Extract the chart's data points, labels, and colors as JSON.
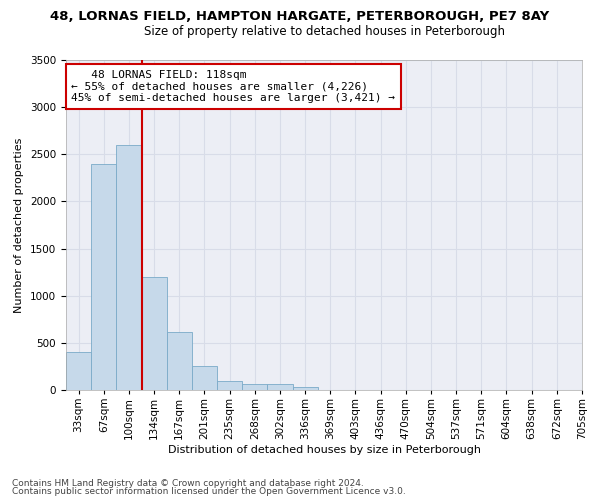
{
  "title1": "48, LORNAS FIELD, HAMPTON HARGATE, PETERBOROUGH, PE7 8AY",
  "title2": "Size of property relative to detached houses in Peterborough",
  "xlabel": "Distribution of detached houses by size in Peterborough",
  "ylabel": "Number of detached properties",
  "bar_values": [
    400,
    2400,
    2600,
    1200,
    620,
    250,
    100,
    60,
    60,
    30,
    5,
    5,
    3,
    2,
    1,
    0,
    0,
    0,
    0,
    0
  ],
  "x_labels": [
    "33sqm",
    "67sqm",
    "100sqm",
    "134sqm",
    "167sqm",
    "201sqm",
    "235sqm",
    "268sqm",
    "302sqm",
    "336sqm",
    "369sqm",
    "403sqm",
    "436sqm",
    "470sqm",
    "504sqm",
    "537sqm",
    "571sqm",
    "604sqm",
    "638sqm",
    "672sqm",
    "705sqm"
  ],
  "bar_color": "#c6d9ea",
  "bar_edge_color": "#7aaac8",
  "red_line_x": 2.5,
  "annotation_line1": "   48 LORNAS FIELD: 118sqm",
  "annotation_line2": "← 55% of detached houses are smaller (4,226)",
  "annotation_line3": "45% of semi-detached houses are larger (3,421) →",
  "annotation_box_color": "#ffffff",
  "annotation_box_edge_color": "#cc0000",
  "ylim": [
    0,
    3500
  ],
  "yticks": [
    0,
    500,
    1000,
    1500,
    2000,
    2500,
    3000,
    3500
  ],
  "grid_color": "#d8dce8",
  "background_color": "#eceef5",
  "footer1": "Contains HM Land Registry data © Crown copyright and database right 2024.",
  "footer2": "Contains public sector information licensed under the Open Government Licence v3.0.",
  "title1_fontsize": 9.5,
  "title2_fontsize": 8.5,
  "xlabel_fontsize": 8,
  "ylabel_fontsize": 8,
  "tick_fontsize": 7.5,
  "annotation_fontsize": 8,
  "footer_fontsize": 6.5
}
